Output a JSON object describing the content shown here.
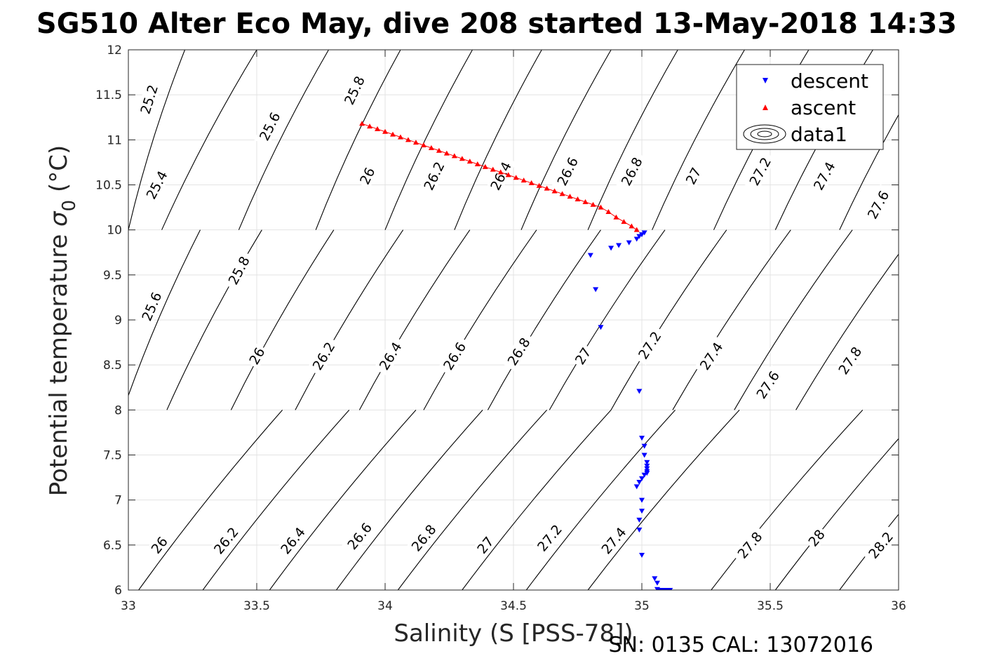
{
  "chart_data": {
    "type": "scatter",
    "title": "SG510 Alter Eco May, dive 208 started 13-May-2018 14:33",
    "xlabel": "Salinity (S [PSS-78])",
    "ylabel_main": "Potential temperature ",
    "ylabel_symbol": "σ",
    "ylabel_sub": "0",
    "ylabel_unit": " (°C)",
    "footer": "SN: 0135  CAL: 13072016",
    "xlim": [
      33,
      36
    ],
    "ylim": [
      6,
      12
    ],
    "x_ticks": [
      "33",
      "33.5",
      "34",
      "34.5",
      "35",
      "35.5",
      "36"
    ],
    "y_ticks": [
      "6",
      "6.5",
      "7",
      "7.5",
      "8",
      "8.5",
      "9",
      "9.5",
      "10",
      "10.5",
      "11",
      "11.5",
      "12"
    ],
    "grid": true,
    "legend_position": "top-right",
    "legend": [
      "descent",
      "ascent",
      "data1"
    ],
    "series": [
      {
        "name": "descent",
        "color": "#0000ff",
        "marker": "triangle-down",
        "points": [
          [
            35.01,
            9.97
          ],
          [
            35.0,
            9.95
          ],
          [
            34.99,
            9.93
          ],
          [
            34.98,
            9.9
          ],
          [
            34.95,
            9.86
          ],
          [
            34.91,
            9.83
          ],
          [
            34.88,
            9.8
          ],
          [
            34.8,
            9.72
          ],
          [
            34.82,
            9.34
          ],
          [
            34.84,
            8.92
          ],
          [
            34.99,
            8.21
          ],
          [
            35.0,
            7.69
          ],
          [
            35.01,
            7.6
          ],
          [
            35.01,
            7.5
          ],
          [
            35.02,
            7.42
          ],
          [
            35.02,
            7.38
          ],
          [
            35.02,
            7.35
          ],
          [
            35.02,
            7.32
          ],
          [
            35.02,
            7.3
          ],
          [
            35.01,
            7.28
          ],
          [
            35.0,
            7.24
          ],
          [
            34.99,
            7.2
          ],
          [
            34.98,
            7.15
          ],
          [
            35.0,
            7.0
          ],
          [
            35.0,
            6.88
          ],
          [
            34.99,
            6.78
          ],
          [
            34.99,
            6.67
          ],
          [
            35.0,
            6.39
          ],
          [
            35.05,
            6.13
          ],
          [
            35.06,
            6.08
          ],
          [
            35.06,
            6.01
          ],
          [
            35.07,
            6.0
          ],
          [
            35.08,
            6.0
          ],
          [
            35.09,
            6.0
          ],
          [
            35.1,
            6.0
          ],
          [
            35.11,
            6.0
          ]
        ]
      },
      {
        "name": "ascent",
        "color": "#ff0000",
        "marker": "triangle-up",
        "points": [
          [
            33.91,
            11.18
          ],
          [
            33.94,
            11.15
          ],
          [
            33.97,
            11.12
          ],
          [
            34.0,
            11.09
          ],
          [
            34.03,
            11.06
          ],
          [
            34.06,
            11.03
          ],
          [
            34.09,
            11.0
          ],
          [
            34.12,
            10.97
          ],
          [
            34.15,
            10.94
          ],
          [
            34.18,
            10.91
          ],
          [
            34.21,
            10.88
          ],
          [
            34.24,
            10.85
          ],
          [
            34.27,
            10.82
          ],
          [
            34.3,
            10.79
          ],
          [
            34.33,
            10.76
          ],
          [
            34.36,
            10.73
          ],
          [
            34.39,
            10.7
          ],
          [
            34.42,
            10.67
          ],
          [
            34.45,
            10.64
          ],
          [
            34.48,
            10.61
          ],
          [
            34.51,
            10.58
          ],
          [
            34.54,
            10.55
          ],
          [
            34.57,
            10.52
          ],
          [
            34.6,
            10.49
          ],
          [
            34.63,
            10.46
          ],
          [
            34.66,
            10.43
          ],
          [
            34.69,
            10.4
          ],
          [
            34.72,
            10.37
          ],
          [
            34.75,
            10.34
          ],
          [
            34.78,
            10.31
          ],
          [
            34.81,
            10.28
          ],
          [
            34.84,
            10.25
          ],
          [
            34.87,
            10.2
          ],
          [
            34.9,
            10.14
          ],
          [
            34.93,
            10.09
          ],
          [
            34.96,
            10.04
          ],
          [
            34.98,
            10.0
          ]
        ]
      }
    ],
    "contours_top": [
      {
        "label": "25.2",
        "x1": 33.0,
        "x2": 33.22,
        "lx": 33.08,
        "ly": 11.45
      },
      {
        "label": "25.4",
        "x1": 33.13,
        "x2": 33.5,
        "lx": 33.11,
        "ly": 10.5
      },
      {
        "label": "25.6",
        "x1": 33.43,
        "x2": 33.78,
        "lx": 33.55,
        "ly": 11.15
      },
      {
        "label": "25.8",
        "x1": 33.73,
        "x2": 34.06,
        "lx": 33.88,
        "ly": 11.55
      },
      {
        "label": "26",
        "x1": 34.0,
        "x2": 34.34,
        "lx": 33.93,
        "ly": 10.6
      },
      {
        "label": "26.2",
        "x1": 34.27,
        "x2": 34.61,
        "lx": 34.19,
        "ly": 10.6
      },
      {
        "label": "26.4",
        "x1": 34.53,
        "x2": 34.88,
        "lx": 34.45,
        "ly": 10.6
      },
      {
        "label": "26.6",
        "x1": 34.79,
        "x2": 35.14,
        "lx": 34.71,
        "ly": 10.65
      },
      {
        "label": "26.8",
        "x1": 35.04,
        "x2": 35.4,
        "lx": 34.96,
        "ly": 10.65
      },
      {
        "label": "27",
        "x1": 35.28,
        "x2": 35.65,
        "lx": 35.2,
        "ly": 10.6
      },
      {
        "label": "27.2",
        "x1": 35.52,
        "x2": 35.9,
        "lx": 35.46,
        "ly": 10.65
      },
      {
        "label": "27.4",
        "x1": 35.77,
        "x2": 36.15,
        "lx": 35.71,
        "ly": 10.6
      },
      {
        "label": "27.6",
        "x1": 36.02,
        "x2": 36.4,
        "lx": 35.92,
        "ly": 10.28
      }
    ],
    "contours_mid": [
      {
        "label": "25.6",
        "x1": 32.98,
        "x2": 33.28,
        "lx": 33.09,
        "ly": 9.15
      },
      {
        "label": "25.8",
        "x1": 33.15,
        "x2": 33.52,
        "lx": 33.43,
        "ly": 9.55
      },
      {
        "label": "26",
        "x1": 33.4,
        "x2": 33.8,
        "lx": 33.5,
        "ly": 8.6
      },
      {
        "label": "26.2",
        "x1": 33.65,
        "x2": 34.07,
        "lx": 33.76,
        "ly": 8.6
      },
      {
        "label": "26.4",
        "x1": 33.9,
        "x2": 34.33,
        "lx": 34.02,
        "ly": 8.6
      },
      {
        "label": "26.6",
        "x1": 34.15,
        "x2": 34.59,
        "lx": 34.27,
        "ly": 8.6
      },
      {
        "label": "26.8",
        "x1": 34.4,
        "x2": 34.84,
        "lx": 34.52,
        "ly": 8.65
      },
      {
        "label": "27",
        "x1": 34.64,
        "x2": 35.09,
        "lx": 34.77,
        "ly": 8.6
      },
      {
        "label": "27.2",
        "x1": 34.88,
        "x2": 35.33,
        "lx": 35.03,
        "ly": 8.72
      },
      {
        "label": "27.4",
        "x1": 35.12,
        "x2": 35.58,
        "lx": 35.27,
        "ly": 8.6
      },
      {
        "label": "27.6",
        "x1": 35.36,
        "x2": 35.82,
        "lx": 35.49,
        "ly": 8.28
      },
      {
        "label": "27.8",
        "x1": 35.6,
        "x2": 36.07,
        "lx": 35.81,
        "ly": 8.55
      }
    ],
    "contours_bot": [
      {
        "label": "26",
        "x1": 33.04,
        "x2": 33.6,
        "lx": 33.12,
        "ly": 6.5
      },
      {
        "label": "26.2",
        "x1": 33.29,
        "x2": 33.86,
        "lx": 33.38,
        "ly": 6.55
      },
      {
        "label": "26.4",
        "x1": 33.55,
        "x2": 34.12,
        "lx": 33.64,
        "ly": 6.55
      },
      {
        "label": "26.6",
        "x1": 33.81,
        "x2": 34.38,
        "lx": 33.9,
        "ly": 6.6
      },
      {
        "label": "26.8",
        "x1": 34.05,
        "x2": 34.63,
        "lx": 34.15,
        "ly": 6.58
      },
      {
        "label": "27",
        "x1": 34.3,
        "x2": 34.88,
        "lx": 34.39,
        "ly": 6.5
      },
      {
        "label": "27.2",
        "x1": 34.55,
        "x2": 35.13,
        "lx": 34.64,
        "ly": 6.58
      },
      {
        "label": "27.4",
        "x1": 34.79,
        "x2": 35.38,
        "lx": 34.89,
        "ly": 6.55
      },
      {
        "label": "27.8",
        "x1": 35.27,
        "x2": 35.86,
        "lx": 35.42,
        "ly": 6.5
      },
      {
        "label": "28",
        "x1": 35.52,
        "x2": 36.1,
        "lx": 35.68,
        "ly": 6.58
      },
      {
        "label": "28.2",
        "x1": 35.77,
        "x2": 36.35,
        "lx": 35.93,
        "ly": 6.5
      }
    ]
  }
}
